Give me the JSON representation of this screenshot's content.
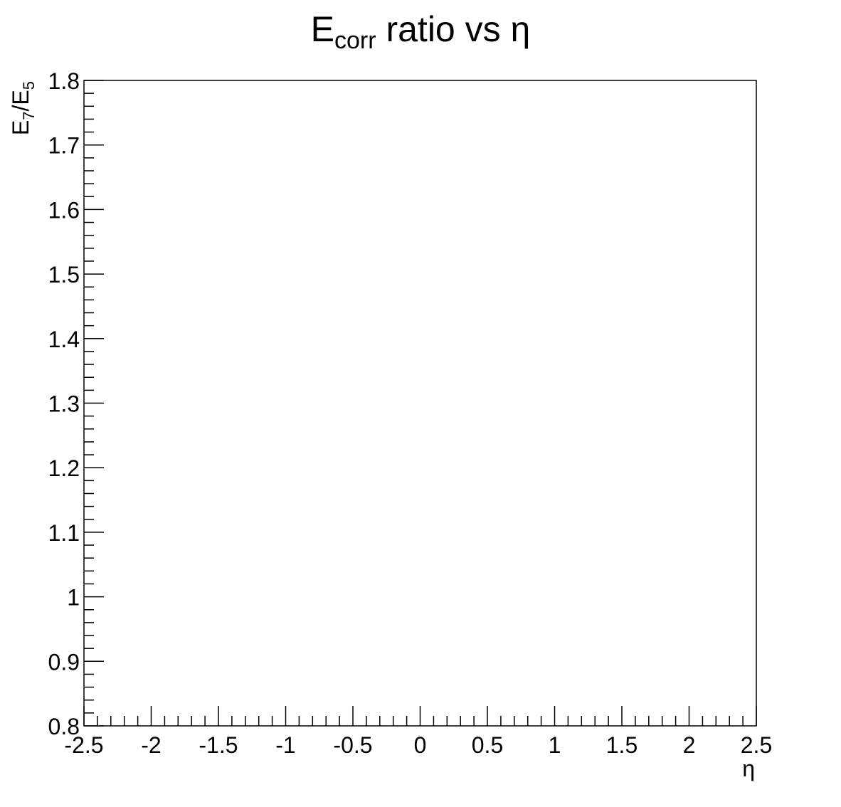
{
  "chart_data": {
    "type": "scatter",
    "title": {
      "main": "E",
      "sub": "corr",
      "rest": " ratio vs η"
    },
    "xlabel": "η",
    "ylabel": {
      "e1": "E",
      "s1": "7",
      "slash": "/E",
      "s2": "5"
    },
    "xlim": [
      -2.5,
      2.5
    ],
    "ylim": [
      0.8,
      1.8
    ],
    "x_ticks": [
      -2.5,
      -2,
      -1.5,
      -1,
      -0.5,
      0,
      0.5,
      1,
      1.5,
      2,
      2.5
    ],
    "y_ticks": [
      0.8,
      0.9,
      1.0,
      1.1,
      1.2,
      1.3,
      1.4,
      1.5,
      1.6,
      1.7,
      1.8
    ],
    "x_tick_labels": [
      "-2.5",
      "-2",
      "-1.5",
      "-1",
      "-0.5",
      "0",
      "0.5",
      "1",
      "1.5",
      "2",
      "2.5"
    ],
    "y_tick_labels": [
      "0.8",
      "0.9",
      "1",
      "1.1",
      "1.2",
      "1.3",
      "1.4",
      "1.5",
      "1.6",
      "1.7",
      "1.8"
    ],
    "x_minor_per_major": 5,
    "y_minor_per_major": 5,
    "grid": false,
    "series": [],
    "frame_color": "#000000"
  }
}
